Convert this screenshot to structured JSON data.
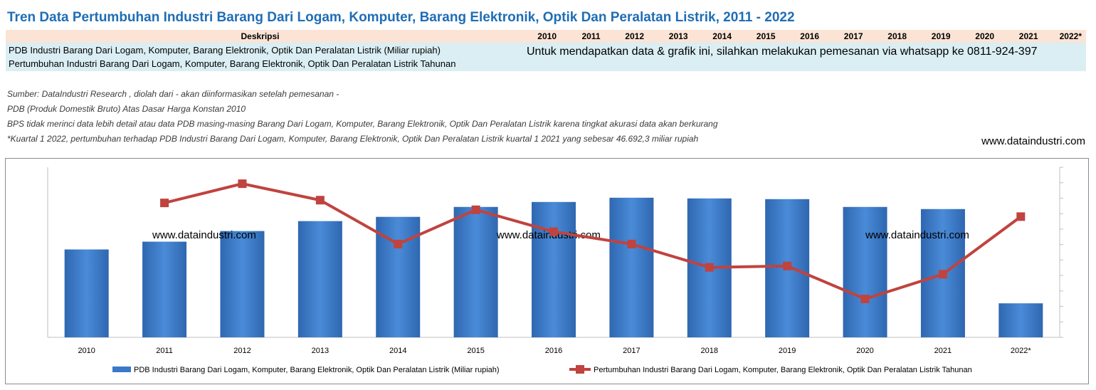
{
  "header": {
    "title": "Tren Data Pertumbuhan Industri Barang Dari Logam, Komputer, Barang Elektronik, Optik Dan Peralatan Listrik, 2011 - 2022"
  },
  "table": {
    "desc_header": "Deskripsi",
    "years": [
      "2010",
      "2011",
      "2012",
      "2013",
      "2014",
      "2015",
      "2016",
      "2017",
      "2018",
      "2019",
      "2020",
      "2021",
      "2022*"
    ],
    "rows": [
      "PDB Industri Barang Dari Logam, Komputer, Barang Elektronik, Optik Dan Peralatan Listrik (Miliar rupiah)",
      "Pertumbuhan Industri Barang Dari Logam, Komputer, Barang Elektronik, Optik Dan Peralatan Listrik Tahunan"
    ],
    "order_message": "Untuk mendapatkan data & grafik ini, silahkan melakukan pemesanan via whatsapp ke 0811-924-397"
  },
  "notes": [
    "Sumber: DataIndustri Research , diolah dari - akan diinformasikan setelah pemesanan -",
    "PDB (Produk Domestik Bruto) Atas Dasar Harga Konstan 2010",
    "BPS tidak merinci data lebih detail atau data PDB masing-masing Barang Dari Logam, Komputer, Barang Elektronik, Optik Dan Peralatan Listrik karena tingkat akurasi data akan berkurang",
    "*Kuartal 1 2022, pertumbuhan terhadap PDB Industri Barang Dari Logam, Komputer, Barang Elektronik, Optik Dan Peralatan Listrik kuartal 1 2021 yang sebesar 46.692,3 miliar rupiah"
  ],
  "website": "www.dataindustri.com",
  "chart_data": {
    "type": "bar",
    "categories": [
      "2010",
      "2011",
      "2012",
      "2013",
      "2014",
      "2015",
      "2016",
      "2017",
      "2018",
      "2019",
      "2020",
      "2021",
      "2022*"
    ],
    "series": [
      {
        "name": "PDB Industri Barang Dari Logam, Komputer, Barang Elektronik, Optik Dan Peralatan Listrik (Miliar rupiah)",
        "type": "bar",
        "color": "#3A78C9",
        "values": [
          124,
          135,
          150,
          164,
          170,
          184,
          191,
          197,
          196,
          195,
          184,
          181,
          48
        ]
      },
      {
        "name": "Pertumbuhan Industri Barang Dari Logam, Komputer, Barang Elektronik, Optik Dan Peralatan Listrik Tahunan",
        "type": "line",
        "color": "#C0433F",
        "values": [
          null,
          8.2,
          9.6,
          8.4,
          5.2,
          7.7,
          6.1,
          5.2,
          3.5,
          3.6,
          1.2,
          3.0,
          7.2
        ]
      }
    ],
    "ylim_bar": [
      0,
      240
    ],
    "ylim_line": [
      -1.6,
      10.8
    ],
    "watermark": "www.dataindustri.com",
    "legend_position": "bottom"
  }
}
